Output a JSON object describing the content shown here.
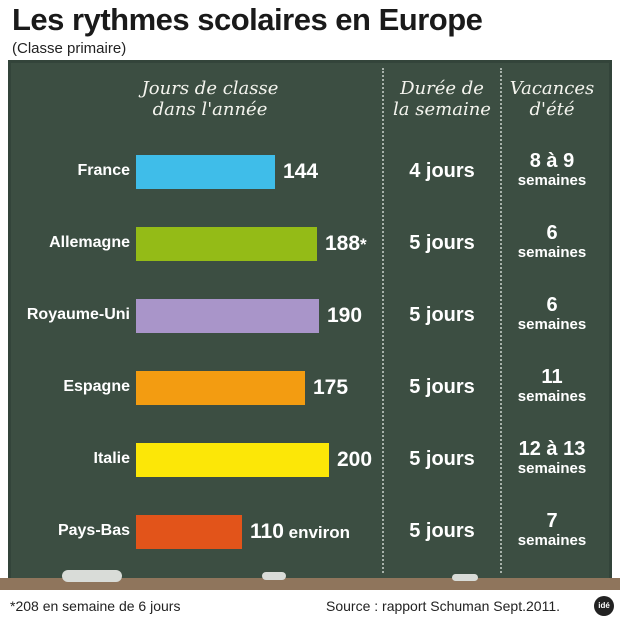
{
  "title": "Les rythmes scolaires en Europe",
  "subtitle": "(Classe primaire)",
  "headers": {
    "days_line1": "Jours de classe",
    "days_line2": "dans l'année",
    "week_line1": "Durée de",
    "week_line2": "la semaine",
    "vac_line1": "Vacances",
    "vac_line2": "d'été"
  },
  "chart_data": {
    "type": "bar",
    "orientation": "horizontal",
    "title": "Les rythmes scolaires en Europe",
    "subtitle": "(Classe primaire)",
    "xlabel": "Jours de classe dans l'année",
    "categories": [
      "France",
      "Allemagne",
      "Royaume-Uni",
      "Espagne",
      "Italie",
      "Pays-Bas"
    ],
    "values": [
      144,
      188,
      190,
      175,
      200,
      110
    ],
    "bar_colors": [
      "#3fbde9",
      "#94bb17",
      "#a995c9",
      "#f39c11",
      "#fce707",
      "#e2541a"
    ],
    "data_labels": [
      "144",
      "188",
      "190",
      "175",
      "200",
      "110"
    ],
    "data_label_suffixes": [
      "",
      "*",
      "",
      "",
      "",
      " environ"
    ],
    "table_columns": [
      "Durée de la semaine",
      "Vacances d'été"
    ],
    "rows": [
      {
        "country": "France",
        "week": "4 jours",
        "vac1": "8 à 9",
        "vac2": "semaines"
      },
      {
        "country": "Allemagne",
        "week": "5 jours",
        "vac1": "6",
        "vac2": "semaines"
      },
      {
        "country": "Royaume-Uni",
        "week": "5 jours",
        "vac1": "6",
        "vac2": "semaines"
      },
      {
        "country": "Espagne",
        "week": "5 jours",
        "vac1": "11",
        "vac2": "semaines"
      },
      {
        "country": "Italie",
        "week": "5 jours",
        "vac1": "12 à 13",
        "vac2": "semaines"
      },
      {
        "country": "Pays-Bas",
        "week": "5 jours",
        "vac1": "7",
        "vac2": "semaines"
      }
    ]
  },
  "footnote": "*208 en semaine de 6 jours",
  "source": "Source : rapport Schuman Sept.2011.",
  "logo_text": "idé",
  "colors": {
    "board": "#3c4e42",
    "ledge": "#8f755c",
    "chalk_text": "#ffffff"
  }
}
